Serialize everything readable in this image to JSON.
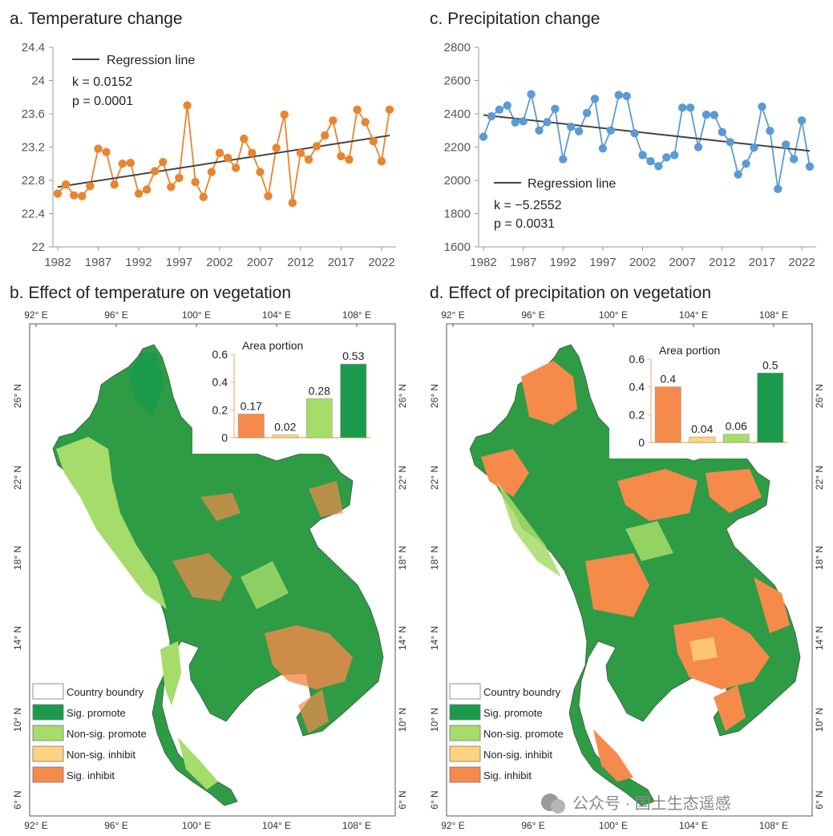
{
  "chart_data": [
    {
      "id": "a",
      "type": "line",
      "title": "a. Temperature change",
      "x": [
        1982,
        1983,
        1984,
        1985,
        1986,
        1987,
        1988,
        1989,
        1990,
        1991,
        1992,
        1993,
        1994,
        1995,
        1996,
        1997,
        1998,
        1999,
        2000,
        2001,
        2002,
        2003,
        2004,
        2005,
        2006,
        2007,
        2008,
        2009,
        2010,
        2011,
        2012,
        2013,
        2014,
        2015,
        2016,
        2017,
        2018,
        2019,
        2020,
        2021,
        2022,
        2023
      ],
      "values": [
        22.64,
        22.75,
        22.62,
        22.61,
        22.73,
        23.18,
        23.14,
        22.75,
        23.0,
        23.01,
        22.64,
        22.69,
        22.91,
        23.02,
        22.72,
        22.83,
        23.7,
        22.78,
        22.6,
        22.9,
        23.13,
        23.07,
        22.95,
        23.3,
        23.13,
        22.9,
        22.61,
        23.19,
        23.59,
        22.53,
        23.13,
        23.05,
        23.21,
        23.34,
        23.52,
        23.09,
        23.05,
        23.65,
        23.5,
        23.27,
        23.03,
        23.65
      ],
      "ylim": [
        22,
        24.4
      ],
      "yticks": [
        22,
        22.4,
        22.8,
        23.2,
        23.6,
        24,
        24.4
      ],
      "yticklabels": [
        "22",
        "22.4",
        "22.8",
        "23.2",
        "23.6",
        "24",
        "24.4"
      ],
      "xticks": [
        "1982",
        "1987",
        "1992",
        "1997",
        "2002",
        "2007",
        "2012",
        "2017",
        "2022"
      ],
      "regression": {
        "y_start": 22.72,
        "y_end": 23.34
      },
      "legend": "Regression line",
      "k": "k = 0.0152",
      "p": "p = 0.0001",
      "color": "#e8852e"
    },
    {
      "id": "c",
      "type": "line",
      "title": "c. Precipitation change",
      "x": [
        1982,
        1983,
        1984,
        1985,
        1986,
        1987,
        1988,
        1989,
        1990,
        1991,
        1992,
        1993,
        1994,
        1995,
        1996,
        1997,
        1998,
        1999,
        2000,
        2001,
        2002,
        2003,
        2004,
        2005,
        2006,
        2007,
        2008,
        2009,
        2010,
        2011,
        2012,
        2013,
        2014,
        2015,
        2016,
        2017,
        2018,
        2019,
        2020,
        2021,
        2022,
        2023
      ],
      "values": [
        2262,
        2385,
        2425,
        2450,
        2348,
        2355,
        2518,
        2300,
        2350,
        2430,
        2127,
        2322,
        2295,
        2405,
        2490,
        2192,
        2300,
        2513,
        2507,
        2283,
        2152,
        2115,
        2085,
        2138,
        2152,
        2437,
        2437,
        2200,
        2395,
        2393,
        2290,
        2230,
        2035,
        2100,
        2197,
        2443,
        2298,
        1948,
        2215,
        2128,
        2360,
        2083
      ],
      "ylim": [
        1600,
        2800
      ],
      "yticks": [
        1600,
        1800,
        2000,
        2200,
        2400,
        2600,
        2800
      ],
      "yticklabels": [
        "1600",
        "1800",
        "2000",
        "2200",
        "2400",
        "2600",
        "2800"
      ],
      "xticks": [
        "1982",
        "1987",
        "1992",
        "1997",
        "2002",
        "2007",
        "2012",
        "2017",
        "2022"
      ],
      "regression": {
        "y_start": 2393,
        "y_end": 2177
      },
      "legend": "Regression line",
      "k": "k = −5.2552",
      "p": "p = 0.0031",
      "color": "#5b9bd5"
    },
    {
      "id": "b-inset",
      "type": "bar",
      "title": "Area portion",
      "categories": [
        "Sig. inhibit",
        "Non-sig. inhibit",
        "Non-sig. promote",
        "Sig. promote"
      ],
      "values": [
        0.17,
        0.02,
        0.28,
        0.53
      ],
      "labels": [
        "0.17",
        "0.02",
        "0.28",
        "0.53"
      ],
      "ylim": [
        0,
        0.6
      ],
      "yticklabels": [
        "0",
        "0.2",
        "0.4",
        "0.6"
      ],
      "colors": [
        "#f58a4b",
        "#ffd280",
        "#a6dc6a",
        "#1b9a4c"
      ]
    },
    {
      "id": "d-inset",
      "type": "bar",
      "title": "Area portion",
      "categories": [
        "Sig. inhibit",
        "Non-sig. inhibit",
        "Non-sig. promote",
        "Sig. promote"
      ],
      "values": [
        0.4,
        0.04,
        0.06,
        0.5
      ],
      "labels": [
        "0.4",
        "0.04",
        "0.06",
        "0.5"
      ],
      "ylim": [
        0,
        0.6
      ],
      "yticklabels": [
        "0",
        "0.2",
        "0.4",
        "0.6"
      ],
      "colors": [
        "#f58a4b",
        "#ffd280",
        "#a6dc6a",
        "#1b9a4c"
      ]
    }
  ],
  "maps": {
    "b_title": "b. Effect of temperature on vegetation",
    "d_title": "d. Effect of precipitation on vegetation",
    "lon_labels": [
      "92° E",
      "96° E",
      "100° E",
      "104° E",
      "108° E"
    ],
    "lat_labels": [
      "26° N",
      "22° N",
      "18° N",
      "14° N",
      "10° N",
      "6° N"
    ],
    "legend": [
      "Country boundry",
      "Sig. promote",
      "Non-sig. promote",
      "Non-sig. inhibit",
      "Sig. inhibit"
    ],
    "legend_colors": [
      "#ffffff",
      "#1b9a4c",
      "#a6dc6a",
      "#ffd280",
      "#f58a4b"
    ]
  },
  "watermark": "公众号 · 国土生态遥感"
}
